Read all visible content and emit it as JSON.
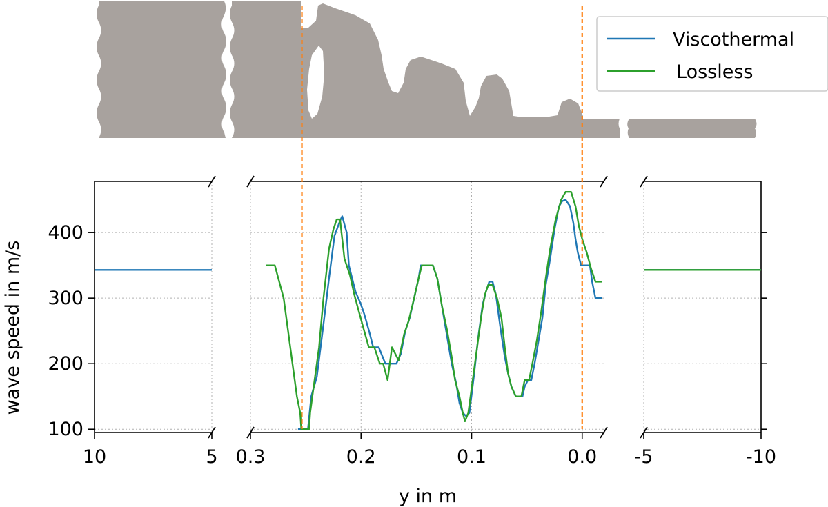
{
  "chart_data": {
    "type": "line",
    "xlabel": "y in m",
    "ylabel": "wave speed in m/s",
    "ylim": [
      95,
      478
    ],
    "yticks": [
      100,
      200,
      300,
      400
    ],
    "grid": true,
    "legend_position": "top-right",
    "panels": [
      {
        "name": "left",
        "xlim": [
          10,
          5
        ],
        "xticks": [
          10,
          5
        ],
        "xtick_labels": [
          "10",
          "5"
        ]
      },
      {
        "name": "center",
        "xlim": [
          0.3,
          -0.0195
        ],
        "xticks": [
          0.3,
          0.2,
          0.1,
          0.0
        ],
        "xtick_labels": [
          "0.3",
          "0.2",
          "0.1",
          "0.0"
        ]
      },
      {
        "name": "right",
        "xlim": [
          -5,
          -10
        ],
        "xticks": [
          -5,
          -10
        ],
        "xtick_labels": [
          "-5",
          "-10"
        ]
      }
    ],
    "series": [
      {
        "name": "Viscothermal",
        "color": "#1f77b4",
        "left_value": 343,
        "right_value": 343,
        "points": [
          [
            0.257,
            100
          ],
          [
            0.248,
            100
          ],
          [
            0.245,
            150
          ],
          [
            0.24,
            180
          ],
          [
            0.234,
            260
          ],
          [
            0.229,
            330
          ],
          [
            0.224,
            395
          ],
          [
            0.219,
            418
          ],
          [
            0.217,
            425
          ],
          [
            0.213,
            400
          ],
          [
            0.211,
            350
          ],
          [
            0.205,
            310
          ],
          [
            0.2,
            290
          ],
          [
            0.197,
            275
          ],
          [
            0.192,
            245
          ],
          [
            0.189,
            225
          ],
          [
            0.184,
            225
          ],
          [
            0.178,
            200
          ],
          [
            0.172,
            200
          ],
          [
            0.168,
            200
          ],
          [
            0.164,
            215
          ],
          [
            0.16,
            250
          ],
          [
            0.156,
            270
          ],
          [
            0.152,
            300
          ],
          [
            0.148,
            330
          ],
          [
            0.146,
            350
          ],
          [
            0.135,
            350
          ],
          [
            0.131,
            330
          ],
          [
            0.127,
            290
          ],
          [
            0.123,
            250
          ],
          [
            0.118,
            200
          ],
          [
            0.114,
            170
          ],
          [
            0.111,
            140
          ],
          [
            0.108,
            125
          ],
          [
            0.105,
            120
          ],
          [
            0.102,
            125
          ],
          [
            0.098,
            180
          ],
          [
            0.094,
            240
          ],
          [
            0.09,
            290
          ],
          [
            0.087,
            310
          ],
          [
            0.084,
            325
          ],
          [
            0.081,
            325
          ],
          [
            0.078,
            305
          ],
          [
            0.074,
            255
          ],
          [
            0.07,
            210
          ],
          [
            0.067,
            185
          ],
          [
            0.064,
            165
          ],
          [
            0.06,
            150
          ],
          [
            0.054,
            150
          ],
          [
            0.052,
            165
          ],
          [
            0.049,
            175
          ],
          [
            0.046,
            175
          ],
          [
            0.043,
            200
          ],
          [
            0.04,
            230
          ],
          [
            0.036,
            270
          ],
          [
            0.033,
            320
          ],
          [
            0.029,
            360
          ],
          [
            0.025,
            405
          ],
          [
            0.021,
            440
          ],
          [
            0.018,
            448
          ],
          [
            0.015,
            450
          ],
          [
            0.011,
            440
          ],
          [
            0.008,
            415
          ],
          [
            0.006,
            390
          ],
          [
            0.004,
            370
          ],
          [
            0.001,
            350
          ],
          [
            -0.007,
            350
          ],
          [
            -0.009,
            325
          ],
          [
            -0.012,
            300
          ],
          [
            -0.018,
            300
          ]
        ]
      },
      {
        "name": "Lossless",
        "color": "#2ca02c",
        "left_value": null,
        "right_value": 343,
        "points": [
          [
            0.286,
            350
          ],
          [
            0.278,
            350
          ],
          [
            0.27,
            300
          ],
          [
            0.264,
            225
          ],
          [
            0.258,
            150
          ],
          [
            0.255,
            125
          ],
          [
            0.254,
            100
          ],
          [
            0.247,
            100
          ],
          [
            0.246,
            125
          ],
          [
            0.242,
            175
          ],
          [
            0.238,
            225
          ],
          [
            0.234,
            300
          ],
          [
            0.229,
            375
          ],
          [
            0.225,
            405
          ],
          [
            0.222,
            420
          ],
          [
            0.219,
            420
          ],
          [
            0.215,
            360
          ],
          [
            0.21,
            335
          ],
          [
            0.206,
            305
          ],
          [
            0.202,
            280
          ],
          [
            0.198,
            255
          ],
          [
            0.193,
            225
          ],
          [
            0.188,
            225
          ],
          [
            0.183,
            200
          ],
          [
            0.18,
            200
          ],
          [
            0.176,
            175
          ],
          [
            0.172,
            225
          ],
          [
            0.166,
            205
          ],
          [
            0.161,
            245
          ],
          [
            0.157,
            265
          ],
          [
            0.152,
            300
          ],
          [
            0.148,
            330
          ],
          [
            0.145,
            350
          ],
          [
            0.135,
            350
          ],
          [
            0.131,
            330
          ],
          [
            0.127,
            290
          ],
          [
            0.122,
            250
          ],
          [
            0.118,
            210
          ],
          [
            0.115,
            175
          ],
          [
            0.111,
            150
          ],
          [
            0.108,
            125
          ],
          [
            0.106,
            112
          ],
          [
            0.103,
            125
          ],
          [
            0.099,
            175
          ],
          [
            0.095,
            225
          ],
          [
            0.091,
            275
          ],
          [
            0.088,
            305
          ],
          [
            0.085,
            320
          ],
          [
            0.081,
            320
          ],
          [
            0.077,
            300
          ],
          [
            0.073,
            270
          ],
          [
            0.07,
            225
          ],
          [
            0.067,
            185
          ],
          [
            0.064,
            165
          ],
          [
            0.06,
            150
          ],
          [
            0.055,
            150
          ],
          [
            0.052,
            175
          ],
          [
            0.048,
            175
          ],
          [
            0.045,
            200
          ],
          [
            0.041,
            235
          ],
          [
            0.037,
            280
          ],
          [
            0.033,
            330
          ],
          [
            0.029,
            375
          ],
          [
            0.024,
            420
          ],
          [
            0.019,
            450
          ],
          [
            0.015,
            462
          ],
          [
            0.01,
            462
          ],
          [
            0.006,
            440
          ],
          [
            0.003,
            410
          ],
          [
            0.0,
            390
          ],
          [
            -0.004,
            370
          ],
          [
            -0.008,
            345
          ],
          [
            -0.012,
            325
          ],
          [
            -0.018,
            325
          ]
        ]
      }
    ],
    "reference_lines": [
      {
        "x": 0.2535,
        "color": "#ff7f0e",
        "style": "dashed"
      },
      {
        "x": 0.0,
        "color": "#ff7f0e",
        "style": "dashed"
      }
    ],
    "geometry_fill_color": "#a8a29e"
  },
  "legend": [
    {
      "label": "Viscothermal",
      "color": "#1f77b4"
    },
    {
      "label": "Lossless",
      "color": "#2ca02c"
    }
  ]
}
